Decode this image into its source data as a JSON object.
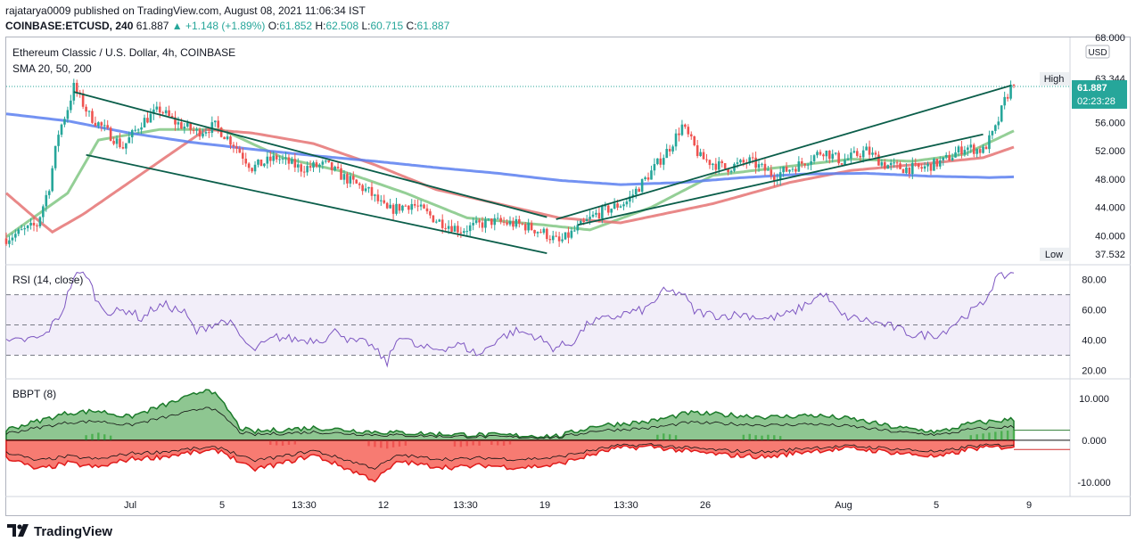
{
  "header": {
    "line1": "rajatarya0009 published on TradingView.com, August 08, 2021 11:06:34 IST",
    "symbol": "COINBASE:ETCUSD, 240",
    "last": "61.887",
    "change": "▲ +1.148 (+1.89%)",
    "o_label": "O:",
    "o": "61.852",
    "h_label": "H:",
    "h": "62.508",
    "l_label": "L:",
    "l": "60.715",
    "c_label": "C:",
    "c": "61.887"
  },
  "legend": {
    "title": "Ethereum Classic / U.S. Dollar, 4h, COINBASE",
    "sma": "SMA 20, 50, 200",
    "rsi": "RSI (14, close)",
    "bbpt": "BBPT (8)"
  },
  "price_axis": {
    "unit": "USD",
    "high_label": "High",
    "high_value": "63.344",
    "low_label": "Low",
    "low_value": "37.532",
    "last_price": "61.887",
    "countdown": "02:23:28"
  },
  "footer": {
    "brand": "TradingView"
  },
  "colors": {
    "up": "#26a69a",
    "down": "#ef5350",
    "sma20": "#81c784",
    "sma50": "#e57373",
    "sma200": "#5b7ff0",
    "trend": "#0b5e4a",
    "rsi": "#7e57c2",
    "bbpt_pos": "#43a047",
    "bbpt_neg": "#f44336"
  },
  "chart_data": [
    {
      "type": "candlestick",
      "title": "Ethereum Classic / U.S. Dollar, 4h, COINBASE",
      "ylim": [
        36,
        68
      ],
      "yticks": [
        "68.000",
        "56.000",
        "52.000",
        "48.000",
        "44.000",
        "40.000"
      ],
      "x_ticks": [
        "Jul",
        "5",
        "13:30",
        "12",
        "13:30",
        "19",
        "13:30",
        "26",
        "Aug",
        "5",
        "9"
      ],
      "close_path": [
        [
          0,
          39.6
        ],
        [
          10,
          41.5
        ],
        [
          14,
          47
        ],
        [
          17,
          54.5
        ],
        [
          20,
          58
        ],
        [
          22,
          61
        ],
        [
          27,
          57
        ],
        [
          32,
          55
        ],
        [
          38,
          52.5
        ],
        [
          44,
          56
        ],
        [
          50,
          57.8
        ],
        [
          55,
          56
        ],
        [
          62,
          54.6
        ],
        [
          68,
          55.5
        ],
        [
          74,
          53
        ],
        [
          80,
          49.6
        ],
        [
          88,
          51
        ],
        [
          96,
          49.5
        ],
        [
          104,
          50
        ],
        [
          110,
          48.2
        ],
        [
          118,
          46.2
        ],
        [
          124,
          43.5
        ],
        [
          132,
          44.5
        ],
        [
          140,
          42.2
        ],
        [
          148,
          40.8
        ],
        [
          158,
          42
        ],
        [
          168,
          41.5
        ],
        [
          175,
          40.4
        ],
        [
          180,
          39
        ],
        [
          186,
          41
        ],
        [
          192,
          43
        ],
        [
          202,
          44.8
        ],
        [
          210,
          49
        ],
        [
          216,
          52.5
        ],
        [
          220,
          55.5
        ],
        [
          226,
          51
        ],
        [
          234,
          49.5
        ],
        [
          242,
          50.5
        ],
        [
          250,
          48.5
        ],
        [
          258,
          50
        ],
        [
          266,
          52
        ],
        [
          272,
          50.5
        ],
        [
          280,
          52
        ],
        [
          286,
          50
        ],
        [
          292,
          49.5
        ],
        [
          298,
          49.5
        ],
        [
          305,
          50.5
        ],
        [
          312,
          52.5
        ],
        [
          318,
          52
        ],
        [
          322,
          55
        ],
        [
          325,
          59
        ],
        [
          328,
          61.9
        ]
      ],
      "series": [
        {
          "name": "SMA 20",
          "values": [
            [
              0,
              39.8
            ],
            [
              20,
              46
            ],
            [
              30,
              53.5
            ],
            [
              50,
              55
            ],
            [
              70,
              55
            ],
            [
              90,
              51
            ],
            [
              110,
              49
            ],
            [
              130,
              46
            ],
            [
              150,
              42.5
            ],
            [
              175,
              41.5
            ],
            [
              190,
              40.8
            ],
            [
              210,
              44
            ],
            [
              230,
              48.5
            ],
            [
              255,
              49.8
            ],
            [
              275,
              50.8
            ],
            [
              295,
              50.5
            ],
            [
              312,
              51.5
            ],
            [
              328,
              54.8
            ]
          ]
        },
        {
          "name": "SMA 50",
          "values": [
            [
              0,
              46
            ],
            [
              8,
              43
            ],
            [
              15,
              40.5
            ],
            [
              25,
              43
            ],
            [
              45,
              49
            ],
            [
              65,
              55
            ],
            [
              80,
              54.5
            ],
            [
              100,
              53
            ],
            [
              120,
              50
            ],
            [
              140,
              46.5
            ],
            [
              160,
              44.5
            ],
            [
              180,
              42.5
            ],
            [
              200,
              41.8
            ],
            [
              230,
              44.5
            ],
            [
              255,
              47.5
            ],
            [
              275,
              49.2
            ],
            [
              300,
              50.2
            ],
            [
              318,
              51
            ],
            [
              328,
              52.5
            ]
          ]
        },
        {
          "name": "SMA 200",
          "values": [
            [
              0,
              57.2
            ],
            [
              20,
              56.2
            ],
            [
              40,
              54.5
            ],
            [
              60,
              53.2
            ],
            [
              80,
              52.2
            ],
            [
              100,
              51.3
            ],
            [
              120,
              50.5
            ],
            [
              140,
              49.6
            ],
            [
              160,
              48.8
            ],
            [
              180,
              47.8
            ],
            [
              200,
              47.2
            ],
            [
              220,
              47.5
            ],
            [
              240,
              48.2
            ],
            [
              260,
              48.7
            ],
            [
              280,
              48.8
            ],
            [
              300,
              48.4
            ],
            [
              320,
              48.2
            ],
            [
              328,
              48.3
            ]
          ]
        }
      ],
      "trendlines": [
        [
          [
            22,
            60.3
          ],
          [
            176,
            42.6
          ]
        ],
        [
          [
            26,
            51.4
          ],
          [
            176,
            37.5
          ]
        ],
        [
          [
            179,
            42.3
          ],
          [
            327,
            61.2
          ]
        ],
        [
          [
            186,
            41.5
          ],
          [
            318,
            54.3
          ]
        ]
      ]
    },
    {
      "type": "line",
      "title": "RSI (14, close)",
      "ylim": [
        15,
        88
      ],
      "yticks": [
        "80.00",
        "60.00",
        "40.00",
        "20.00"
      ],
      "bands": {
        "upper": 70,
        "middle": 50,
        "lower": 30
      },
      "values": [
        [
          0,
          38
        ],
        [
          6,
          40
        ],
        [
          12,
          42
        ],
        [
          18,
          58
        ],
        [
          22,
          82
        ],
        [
          26,
          84
        ],
        [
          30,
          64
        ],
        [
          34,
          58
        ],
        [
          40,
          60
        ],
        [
          44,
          54
        ],
        [
          48,
          61
        ],
        [
          52,
          63
        ],
        [
          58,
          58
        ],
        [
          62,
          45
        ],
        [
          66,
          50
        ],
        [
          72,
          53
        ],
        [
          80,
          33
        ],
        [
          88,
          42
        ],
        [
          96,
          40
        ],
        [
          104,
          41
        ],
        [
          108,
          47
        ],
        [
          112,
          39
        ],
        [
          118,
          38
        ],
        [
          124,
          25
        ],
        [
          128,
          44
        ],
        [
          134,
          35
        ],
        [
          140,
          34
        ],
        [
          148,
          37
        ],
        [
          154,
          30
        ],
        [
          160,
          41
        ],
        [
          166,
          46
        ],
        [
          172,
          43
        ],
        [
          178,
          35
        ],
        [
          184,
          38
        ],
        [
          190,
          52
        ],
        [
          196,
          54
        ],
        [
          202,
          58
        ],
        [
          208,
          60
        ],
        [
          214,
          72
        ],
        [
          220,
          71
        ],
        [
          224,
          59
        ],
        [
          232,
          56
        ],
        [
          240,
          57
        ],
        [
          248,
          54
        ],
        [
          256,
          58
        ],
        [
          266,
          71
        ],
        [
          272,
          56
        ],
        [
          280,
          53
        ],
        [
          288,
          49
        ],
        [
          296,
          43
        ],
        [
          304,
          44
        ],
        [
          312,
          56
        ],
        [
          318,
          64
        ],
        [
          322,
          80
        ],
        [
          328,
          85
        ]
      ]
    },
    {
      "type": "area",
      "title": "BBPT (8)",
      "ylim": [
        -13,
        14
      ],
      "yticks": [
        "10.000",
        "0.000",
        "-10.000"
      ],
      "series": [
        {
          "name": "bull",
          "values": [
            [
              0,
              2.5
            ],
            [
              10,
              4.5
            ],
            [
              20,
              6.5
            ],
            [
              30,
              7
            ],
            [
              40,
              5.5
            ],
            [
              50,
              8
            ],
            [
              60,
              10.5
            ],
            [
              66,
              12.5
            ],
            [
              72,
              7.5
            ],
            [
              76,
              3
            ],
            [
              80,
              2
            ],
            [
              90,
              2.5
            ],
            [
              100,
              3
            ],
            [
              110,
              2.5
            ],
            [
              120,
              2
            ],
            [
              140,
              1.5
            ],
            [
              160,
              1.2
            ],
            [
              180,
              1
            ],
            [
              192,
              3.5
            ],
            [
              210,
              4.5
            ],
            [
              222,
              6.5
            ],
            [
              236,
              6
            ],
            [
              250,
              5.5
            ],
            [
              262,
              6
            ],
            [
              276,
              5
            ],
            [
              290,
              3
            ],
            [
              304,
              2
            ],
            [
              314,
              4
            ],
            [
              328,
              5
            ]
          ]
        },
        {
          "name": "bear",
          "values": [
            [
              0,
              -4
            ],
            [
              10,
              -7
            ],
            [
              20,
              -5.5
            ],
            [
              30,
              -6.5
            ],
            [
              40,
              -4.5
            ],
            [
              50,
              -4
            ],
            [
              60,
              -3
            ],
            [
              70,
              -2.5
            ],
            [
              80,
              -7
            ],
            [
              90,
              -5.5
            ],
            [
              100,
              -3.5
            ],
            [
              110,
              -6.5
            ],
            [
              120,
              -9.5
            ],
            [
              128,
              -5
            ],
            [
              136,
              -6
            ],
            [
              146,
              -6.5
            ],
            [
              156,
              -6
            ],
            [
              166,
              -6.5
            ],
            [
              178,
              -6
            ],
            [
              188,
              -4
            ],
            [
              198,
              -2
            ],
            [
              210,
              -1.5
            ],
            [
              220,
              -2.5
            ],
            [
              234,
              -3.5
            ],
            [
              248,
              -4
            ],
            [
              262,
              -2.5
            ],
            [
              276,
              -2
            ],
            [
              290,
              -3
            ],
            [
              304,
              -4
            ],
            [
              314,
              -2
            ],
            [
              328,
              -1.5
            ]
          ]
        }
      ],
      "hist": [
        [
          26,
          1.2
        ],
        [
          28,
          1.5
        ],
        [
          30,
          1.8
        ],
        [
          32,
          1.4
        ],
        [
          34,
          1.1
        ],
        [
          86,
          -1.1
        ],
        [
          88,
          -1.2
        ],
        [
          90,
          -1.3
        ],
        [
          92,
          -1.1
        ],
        [
          94,
          -1
        ],
        [
          118,
          -1.4
        ],
        [
          120,
          -1.6
        ],
        [
          122,
          -1.8
        ],
        [
          124,
          -2
        ],
        [
          126,
          -1.7
        ],
        [
          128,
          -1.5
        ],
        [
          130,
          -1.3
        ],
        [
          146,
          -1.5
        ],
        [
          148,
          -1.6
        ],
        [
          150,
          -1.4
        ],
        [
          152,
          -1.2
        ],
        [
          154,
          -1.3
        ],
        [
          158,
          -1.1
        ],
        [
          160,
          -1.2
        ],
        [
          162,
          -1.3
        ],
        [
          164,
          -1
        ],
        [
          212,
          1.3
        ],
        [
          214,
          1.6
        ],
        [
          216,
          1.4
        ],
        [
          218,
          1.2
        ],
        [
          240,
          1.3
        ],
        [
          242,
          1.5
        ],
        [
          244,
          1.2
        ],
        [
          246,
          1.1
        ],
        [
          248,
          1.3
        ],
        [
          250,
          1.2
        ],
        [
          252,
          1
        ],
        [
          314,
          1.2
        ],
        [
          316,
          1.4
        ],
        [
          318,
          1.6
        ],
        [
          320,
          1.8
        ],
        [
          322,
          2
        ],
        [
          324,
          2.2
        ],
        [
          326,
          2.3
        ],
        [
          328,
          2.4
        ]
      ]
    }
  ]
}
